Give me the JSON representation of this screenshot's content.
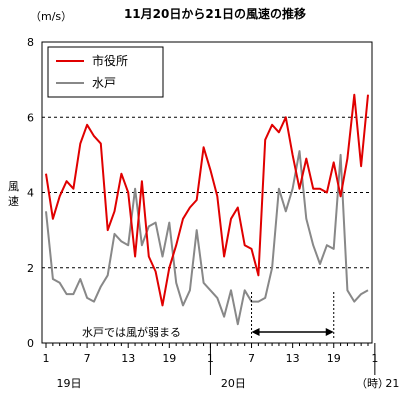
{
  "chart_data": {
    "type": "line",
    "title": "11月20日から21日の風速の推移",
    "unit_label": "（m/s）",
    "ylabel_chars": [
      "風",
      "速"
    ],
    "ylim": [
      0,
      8
    ],
    "y_ticks": [
      0,
      2,
      4,
      6,
      8
    ],
    "grid": "dashed horizontal at 2, 4, 6",
    "x_tick_labels": [
      "1",
      "7",
      "13",
      "19",
      "1",
      "7",
      "13",
      "19",
      "1",
      "7",
      "13",
      "19"
    ],
    "day_labels": [
      {
        "label": "19日",
        "hour_index": 0
      },
      {
        "label": "20日",
        "hour_index": 24
      },
      {
        "label": "21日",
        "hour_index": 48
      }
    ],
    "x_unit": "（時）",
    "legend_position": "top-left",
    "annotation": {
      "text": "水戸では風が弱まる",
      "from_hour_index": 30,
      "to_hour_index": 42
    },
    "series": [
      {
        "name": "市役所",
        "color": "#e00000",
        "values": [
          4.5,
          3.3,
          3.9,
          4.3,
          4.1,
          5.3,
          5.8,
          5.5,
          5.3,
          3.0,
          3.5,
          4.5,
          4.0,
          2.3,
          4.3,
          2.3,
          1.9,
          1.0,
          2.0,
          2.6,
          3.3,
          3.6,
          3.8,
          5.2,
          4.6,
          3.9,
          2.3,
          3.3,
          3.6,
          2.6,
          2.5,
          1.8,
          5.4,
          5.8,
          5.6,
          6.0,
          5.0,
          4.1,
          4.9,
          4.1,
          4.1,
          4.0,
          4.8,
          3.9,
          4.9,
          6.6,
          4.7,
          6.6
        ]
      },
      {
        "name": "水戸",
        "color": "#888888",
        "values": [
          3.5,
          1.7,
          1.6,
          1.3,
          1.3,
          1.7,
          1.2,
          1.1,
          1.5,
          1.8,
          2.9,
          2.7,
          2.6,
          4.1,
          2.6,
          3.1,
          3.2,
          2.3,
          3.2,
          1.6,
          1.0,
          1.4,
          3.0,
          1.6,
          1.4,
          1.2,
          0.7,
          1.4,
          0.5,
          1.4,
          1.1,
          1.1,
          1.2,
          2.0,
          4.1,
          3.5,
          4.1,
          5.1,
          3.3,
          2.6,
          2.1,
          2.6,
          2.5,
          5.0,
          1.4,
          1.1,
          1.3,
          1.4
        ]
      }
    ]
  }
}
